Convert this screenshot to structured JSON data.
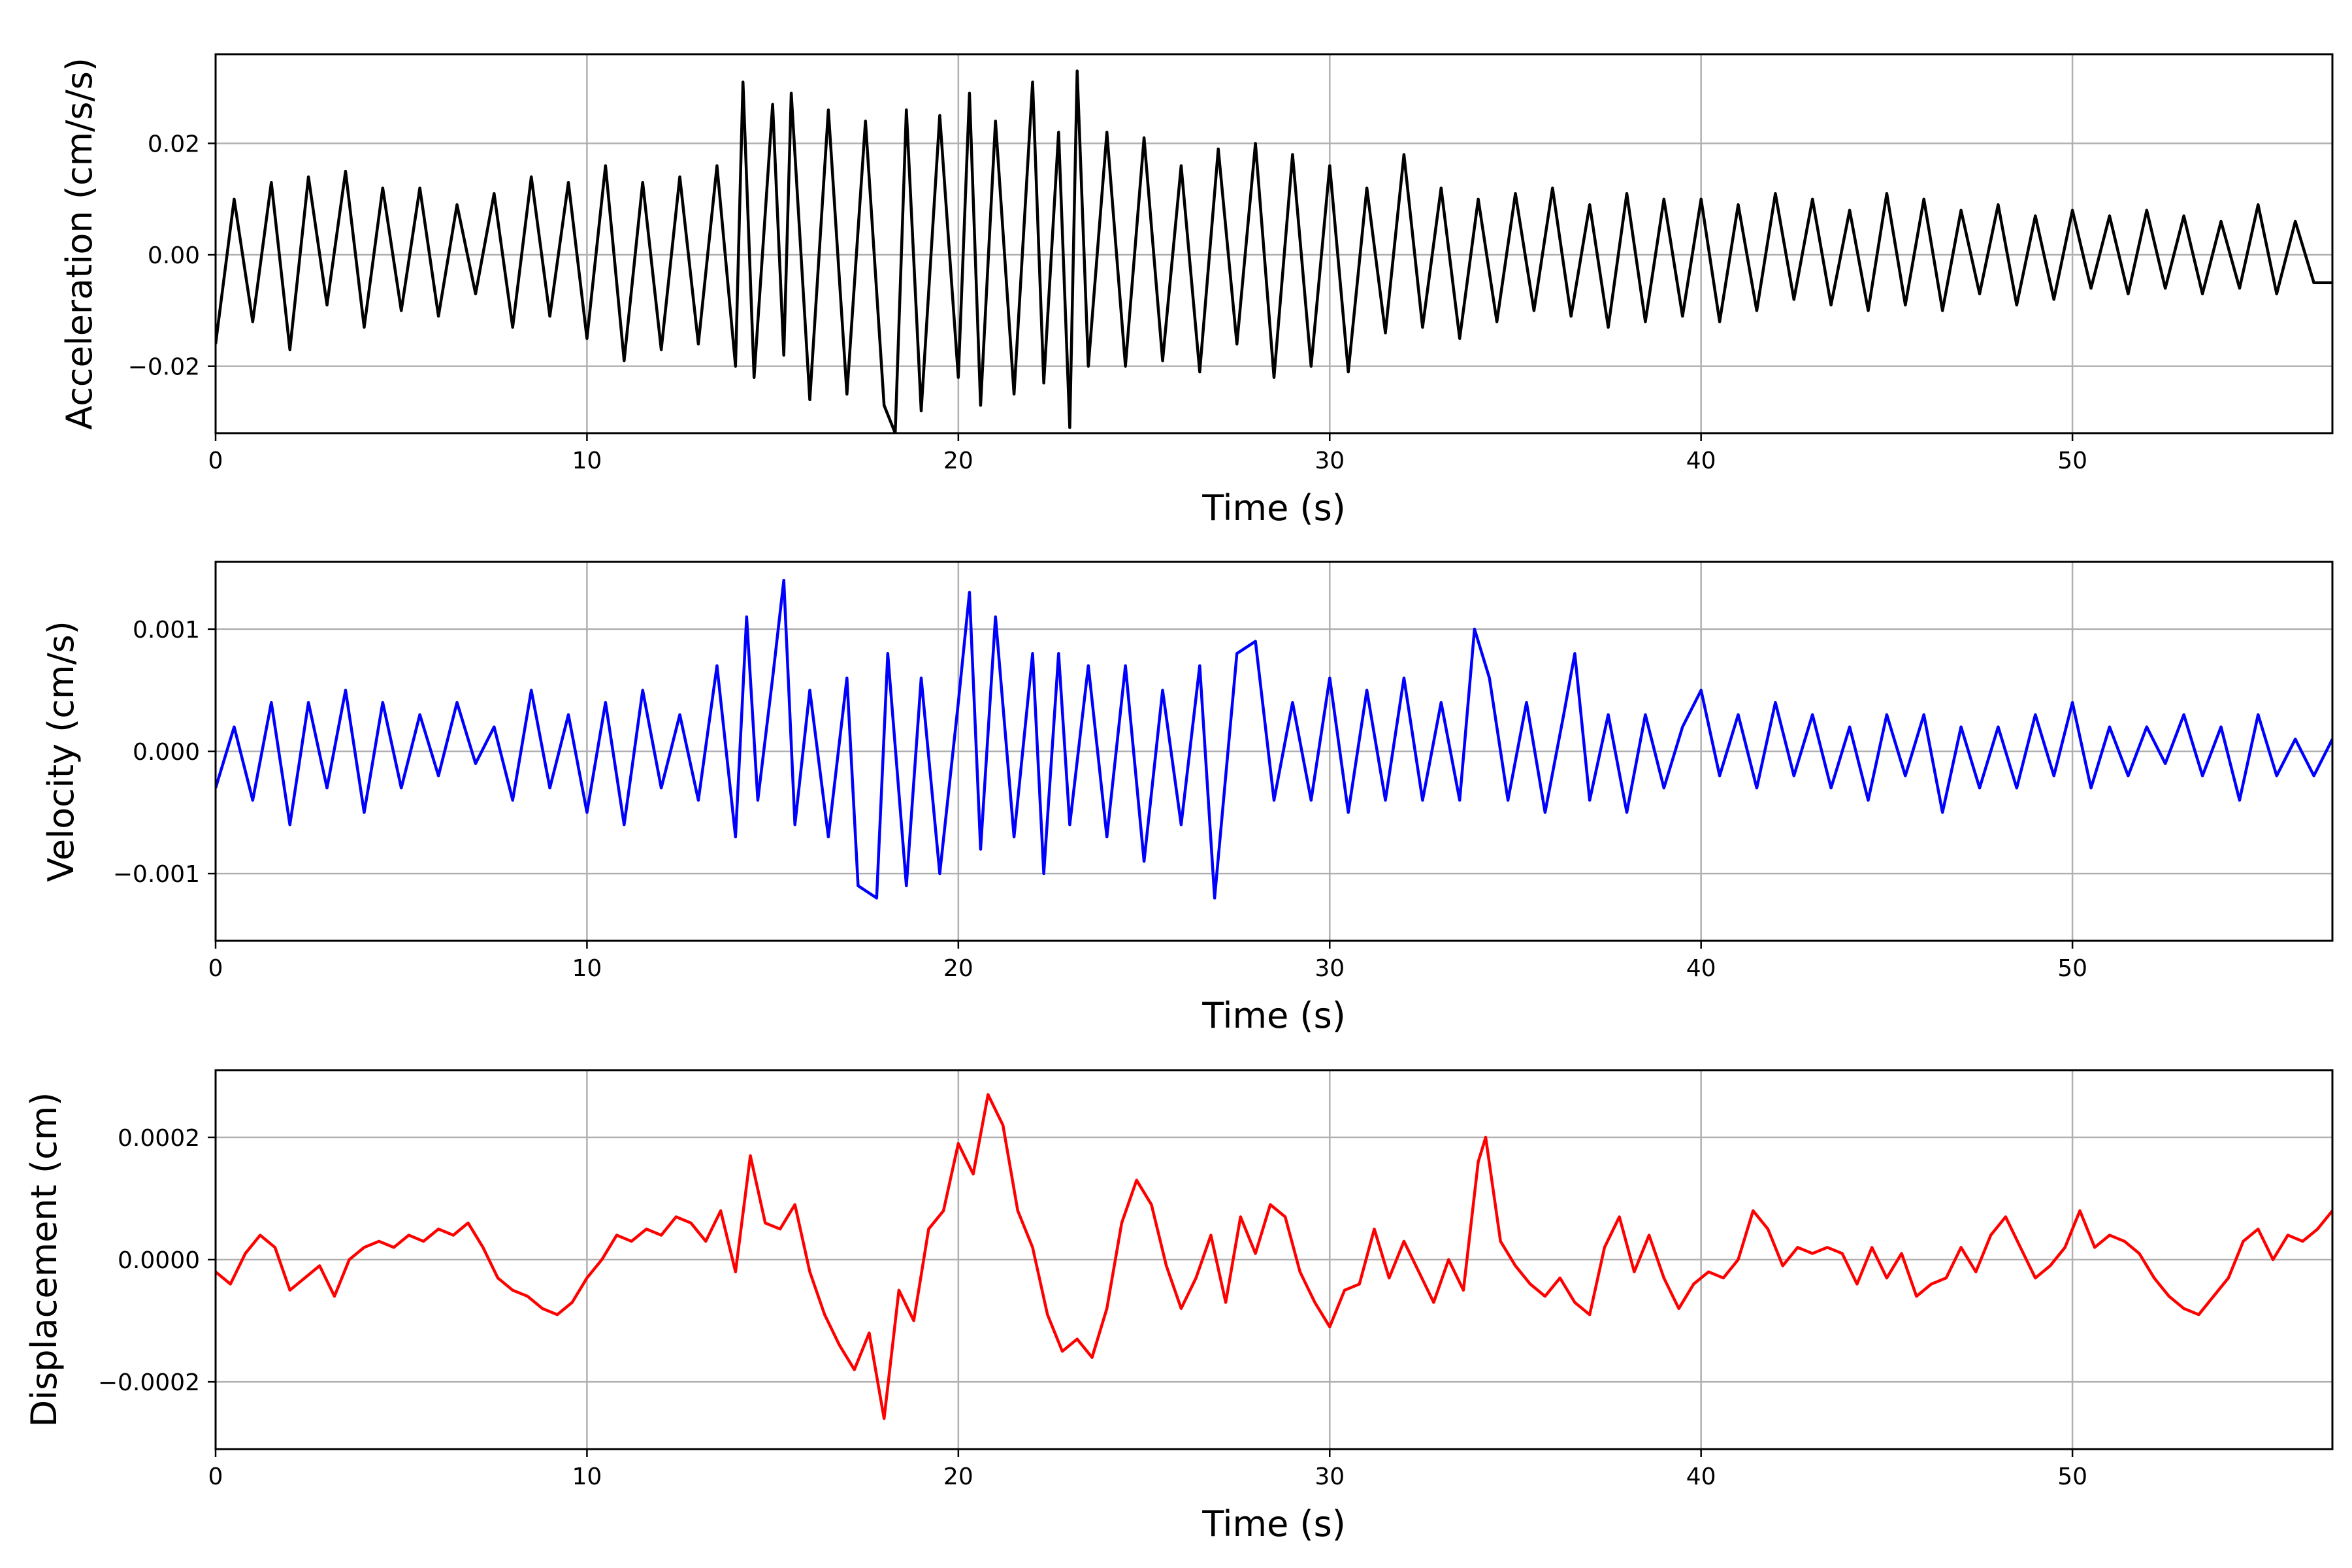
{
  "figure": {
    "background": "#ffffff",
    "grid_color": "#b0b0b0",
    "frame_color": "#000000"
  },
  "chart_data": [
    {
      "type": "line",
      "title": "",
      "xlabel": "Time (s)",
      "ylabel": "Acceleration (cm/s/s)",
      "xlim": [
        0,
        57
      ],
      "ylim": [
        -0.032,
        0.036
      ],
      "xticks": [
        0,
        10,
        20,
        30,
        40,
        50
      ],
      "xtick_labels": [
        "0",
        "10",
        "20",
        "30",
        "40",
        "50"
      ],
      "yticks": [
        -0.02,
        0.0,
        0.02
      ],
      "ytick_labels": [
        "−0.02",
        "0.00",
        "0.02"
      ],
      "grid": true,
      "series": [
        {
          "color": "#000000",
          "x": [
            0,
            0.5,
            1.0,
            1.5,
            2.0,
            2.5,
            3.0,
            3.5,
            4.0,
            4.5,
            5.0,
            5.5,
            6.0,
            6.5,
            7.0,
            7.5,
            8.0,
            8.5,
            9.0,
            9.5,
            10.0,
            10.5,
            11.0,
            11.5,
            12.0,
            12.5,
            13.0,
            13.5,
            14.0,
            14.2,
            14.5,
            15.0,
            15.3,
            15.5,
            16.0,
            16.5,
            17.0,
            17.5,
            18.0,
            18.3,
            18.6,
            19.0,
            19.5,
            20.0,
            20.3,
            20.6,
            21.0,
            21.5,
            22.0,
            22.3,
            22.7,
            23.0,
            23.2,
            23.5,
            24.0,
            24.5,
            25.0,
            25.5,
            26.0,
            26.5,
            27.0,
            27.5,
            28.0,
            28.5,
            29.0,
            29.5,
            30.0,
            30.5,
            31.0,
            31.5,
            32.0,
            32.5,
            33.0,
            33.5,
            34.0,
            34.5,
            35.0,
            35.5,
            36.0,
            36.5,
            37.0,
            37.5,
            38.0,
            38.5,
            39.0,
            39.5,
            40.0,
            40.5,
            41.0,
            41.5,
            42.0,
            42.5,
            43.0,
            43.5,
            44.0,
            44.5,
            45.0,
            45.5,
            46.0,
            46.5,
            47.0,
            47.5,
            48.0,
            48.5,
            49.0,
            49.5,
            50.0,
            50.5,
            51.0,
            51.5,
            52.0,
            52.5,
            53.0,
            53.5,
            54.0,
            54.5,
            55.0,
            55.5,
            56.0,
            56.5,
            57.0
          ],
          "y": [
            -0.016,
            0.01,
            -0.012,
            0.013,
            -0.017,
            0.014,
            -0.009,
            0.015,
            -0.013,
            0.012,
            -0.01,
            0.012,
            -0.011,
            0.009,
            -0.007,
            0.011,
            -0.013,
            0.014,
            -0.011,
            0.013,
            -0.015,
            0.016,
            -0.019,
            0.013,
            -0.017,
            0.014,
            -0.016,
            0.016,
            -0.02,
            0.031,
            -0.022,
            0.027,
            -0.018,
            0.029,
            -0.026,
            0.026,
            -0.025,
            0.024,
            -0.027,
            -0.032,
            0.026,
            -0.028,
            0.025,
            -0.022,
            0.029,
            -0.027,
            0.024,
            -0.025,
            0.031,
            -0.023,
            0.022,
            -0.031,
            0.033,
            -0.02,
            0.022,
            -0.02,
            0.021,
            -0.019,
            0.016,
            -0.021,
            0.019,
            -0.016,
            0.02,
            -0.022,
            0.018,
            -0.02,
            0.016,
            -0.021,
            0.012,
            -0.014,
            0.018,
            -0.013,
            0.012,
            -0.015,
            0.01,
            -0.012,
            0.011,
            -0.01,
            0.012,
            -0.011,
            0.009,
            -0.013,
            0.011,
            -0.012,
            0.01,
            -0.011,
            0.01,
            -0.012,
            0.009,
            -0.01,
            0.011,
            -0.008,
            0.01,
            -0.009,
            0.008,
            -0.01,
            0.011,
            -0.009,
            0.01,
            -0.01,
            0.008,
            -0.007,
            0.009,
            -0.009,
            0.007,
            -0.008,
            0.008,
            -0.006,
            0.007,
            -0.007,
            0.008,
            -0.006,
            0.007,
            -0.007,
            0.006,
            -0.006,
            0.009,
            -0.007,
            0.006,
            -0.005,
            -0.005
          ]
        }
      ]
    },
    {
      "type": "line",
      "title": "",
      "xlabel": "Time (s)",
      "ylabel": "Velocity (cm/s)",
      "xlim": [
        0,
        57
      ],
      "ylim": [
        -0.00155,
        0.00155
      ],
      "xticks": [
        0,
        10,
        20,
        30,
        40,
        50
      ],
      "xtick_labels": [
        "0",
        "10",
        "20",
        "30",
        "40",
        "50"
      ],
      "yticks": [
        -0.001,
        0.0,
        0.001
      ],
      "ytick_labels": [
        "−0.001",
        "0.000",
        "0.001"
      ],
      "grid": true,
      "series": [
        {
          "color": "#0000ff",
          "x": [
            0,
            0.5,
            1.0,
            1.5,
            2.0,
            2.5,
            3.0,
            3.5,
            4.0,
            4.5,
            5.0,
            5.5,
            6.0,
            6.5,
            7.0,
            7.5,
            8.0,
            8.5,
            9.0,
            9.5,
            10.0,
            10.5,
            11.0,
            11.5,
            12.0,
            12.5,
            13.0,
            13.5,
            14.0,
            14.3,
            14.6,
            15.0,
            15.3,
            15.6,
            16.0,
            16.5,
            17.0,
            17.3,
            17.8,
            18.1,
            18.6,
            19.0,
            19.5,
            20.0,
            20.3,
            20.6,
            21.0,
            21.5,
            22.0,
            22.3,
            22.7,
            23.0,
            23.5,
            24.0,
            24.5,
            25.0,
            25.5,
            26.0,
            26.5,
            26.9,
            27.5,
            28.0,
            28.5,
            29.0,
            29.5,
            30.0,
            30.5,
            31.0,
            31.5,
            32.0,
            32.5,
            33.0,
            33.5,
            33.9,
            34.3,
            34.8,
            35.3,
            35.8,
            36.3,
            36.6,
            37.0,
            37.5,
            38.0,
            38.5,
            39.0,
            39.5,
            40.0,
            40.5,
            41.0,
            41.5,
            42.0,
            42.5,
            43.0,
            43.5,
            44.0,
            44.5,
            45.0,
            45.5,
            46.0,
            46.5,
            47.0,
            47.5,
            48.0,
            48.5,
            49.0,
            49.5,
            50.0,
            50.5,
            51.0,
            51.5,
            52.0,
            52.5,
            53.0,
            53.5,
            54.0,
            54.5,
            55.0,
            55.5,
            56.0,
            56.5,
            57.0
          ],
          "y": [
            -0.0003,
            0.0002,
            -0.0004,
            0.0004,
            -0.0006,
            0.0004,
            -0.0003,
            0.0005,
            -0.0005,
            0.0004,
            -0.0003,
            0.0003,
            -0.0002,
            0.0004,
            -0.0001,
            0.0002,
            -0.0004,
            0.0005,
            -0.0003,
            0.0003,
            -0.0005,
            0.0004,
            -0.0006,
            0.0005,
            -0.0003,
            0.0003,
            -0.0004,
            0.0007,
            -0.0007,
            0.0011,
            -0.0004,
            0.0006,
            0.0014,
            -0.0006,
            0.0005,
            -0.0007,
            0.0006,
            -0.0011,
            -0.0012,
            0.0008,
            -0.0011,
            0.0006,
            -0.001,
            0.0004,
            0.0013,
            -0.0008,
            0.0011,
            -0.0007,
            0.0008,
            -0.001,
            0.0008,
            -0.0006,
            0.0007,
            -0.0007,
            0.0007,
            -0.0009,
            0.0005,
            -0.0006,
            0.0007,
            -0.0012,
            0.0008,
            0.0009,
            -0.0004,
            0.0004,
            -0.0004,
            0.0006,
            -0.0005,
            0.0005,
            -0.0004,
            0.0006,
            -0.0004,
            0.0004,
            -0.0004,
            0.001,
            0.0006,
            -0.0004,
            0.0004,
            -0.0005,
            0.0003,
            0.0008,
            -0.0004,
            0.0003,
            -0.0005,
            0.0003,
            -0.0003,
            0.0002,
            0.0005,
            -0.0002,
            0.0003,
            -0.0003,
            0.0004,
            -0.0002,
            0.0003,
            -0.0003,
            0.0002,
            -0.0004,
            0.0003,
            -0.0002,
            0.0003,
            -0.0005,
            0.0002,
            -0.0003,
            0.0002,
            -0.0003,
            0.0003,
            -0.0002,
            0.0004,
            -0.0003,
            0.0002,
            -0.0002,
            0.0002,
            -0.0001,
            0.0003,
            -0.0002,
            0.0002,
            -0.0004,
            0.0003,
            -0.0002,
            0.0001,
            -0.0002,
            0.0001
          ]
        }
      ]
    },
    {
      "type": "line",
      "title": "",
      "xlabel": "Time (s)",
      "ylabel": "Displacement (cm)",
      "xlim": [
        0,
        57
      ],
      "ylim": [
        -0.00031,
        0.00031
      ],
      "xticks": [
        0,
        10,
        20,
        30,
        40,
        50
      ],
      "xtick_labels": [
        "0",
        "10",
        "20",
        "30",
        "40",
        "50"
      ],
      "yticks": [
        -0.0002,
        0.0,
        0.0002
      ],
      "ytick_labels": [
        "−0.0002",
        "0.0000",
        "0.0002"
      ],
      "grid": true,
      "series": [
        {
          "color": "#ff0000",
          "x": [
            0,
            0.4,
            0.8,
            1.2,
            1.6,
            2.0,
            2.4,
            2.8,
            3.2,
            3.6,
            4.0,
            4.4,
            4.8,
            5.2,
            5.6,
            6.0,
            6.4,
            6.8,
            7.2,
            7.6,
            8.0,
            8.4,
            8.8,
            9.2,
            9.6,
            10.0,
            10.4,
            10.8,
            11.2,
            11.6,
            12.0,
            12.4,
            12.8,
            13.2,
            13.6,
            14.0,
            14.4,
            14.8,
            15.2,
            15.6,
            16.0,
            16.4,
            16.8,
            17.2,
            17.6,
            18.0,
            18.4,
            18.8,
            19.2,
            19.6,
            20.0,
            20.4,
            20.8,
            21.2,
            21.6,
            22.0,
            22.4,
            22.8,
            23.2,
            23.6,
            24.0,
            24.4,
            24.8,
            25.2,
            25.6,
            26.0,
            26.4,
            26.8,
            27.2,
            27.6,
            28.0,
            28.4,
            28.8,
            29.2,
            29.6,
            30.0,
            30.4,
            30.8,
            31.2,
            31.6,
            32.0,
            32.4,
            32.8,
            33.2,
            33.6,
            34.0,
            34.2,
            34.6,
            35.0,
            35.4,
            35.8,
            36.2,
            36.6,
            37.0,
            37.4,
            37.8,
            38.2,
            38.6,
            39.0,
            39.4,
            39.8,
            40.2,
            40.6,
            41.0,
            41.4,
            41.8,
            42.2,
            42.6,
            43.0,
            43.4,
            43.8,
            44.2,
            44.6,
            45.0,
            45.4,
            45.8,
            46.2,
            46.6,
            47.0,
            47.4,
            47.8,
            48.2,
            48.6,
            49.0,
            49.4,
            49.8,
            50.2,
            50.6,
            51.0,
            51.4,
            51.8,
            52.2,
            52.6,
            53.0,
            53.4,
            53.8,
            54.2,
            54.6,
            55.0,
            55.4,
            55.8,
            56.2,
            56.6,
            57.0
          ],
          "y": [
            -2e-05,
            -4e-05,
            1e-05,
            4e-05,
            2e-05,
            -5e-05,
            -3e-05,
            -1e-05,
            -6e-05,
            0.0,
            2e-05,
            3e-05,
            2e-05,
            4e-05,
            3e-05,
            5e-05,
            4e-05,
            6e-05,
            2e-05,
            -3e-05,
            -5e-05,
            -6e-05,
            -8e-05,
            -9e-05,
            -7e-05,
            -3e-05,
            0.0,
            4e-05,
            3e-05,
            5e-05,
            4e-05,
            7e-05,
            6e-05,
            3e-05,
            8e-05,
            -2e-05,
            0.00017,
            6e-05,
            5e-05,
            9e-05,
            -2e-05,
            -9e-05,
            -0.00014,
            -0.00018,
            -0.00012,
            -0.00026,
            -5e-05,
            -0.0001,
            5e-05,
            8e-05,
            0.00019,
            0.00014,
            0.00027,
            0.00022,
            8e-05,
            2e-05,
            -9e-05,
            -0.00015,
            -0.00013,
            -0.00016,
            -8e-05,
            6e-05,
            0.00013,
            9e-05,
            -1e-05,
            -8e-05,
            -3e-05,
            4e-05,
            -7e-05,
            7e-05,
            1e-05,
            9e-05,
            7e-05,
            -2e-05,
            -7e-05,
            -0.00011,
            -5e-05,
            -4e-05,
            5e-05,
            -3e-05,
            3e-05,
            -2e-05,
            -7e-05,
            0.0,
            -5e-05,
            0.00016,
            0.0002,
            3e-05,
            -1e-05,
            -4e-05,
            -6e-05,
            -3e-05,
            -7e-05,
            -9e-05,
            2e-05,
            7e-05,
            -2e-05,
            4e-05,
            -3e-05,
            -8e-05,
            -4e-05,
            -2e-05,
            -3e-05,
            0.0,
            8e-05,
            5e-05,
            -1e-05,
            2e-05,
            1e-05,
            2e-05,
            1e-05,
            -4e-05,
            2e-05,
            -3e-05,
            1e-05,
            -6e-05,
            -4e-05,
            -3e-05,
            2e-05,
            -2e-05,
            4e-05,
            7e-05,
            2e-05,
            -3e-05,
            -1e-05,
            2e-05,
            8e-05,
            2e-05,
            4e-05,
            3e-05,
            1e-05,
            -3e-05,
            -6e-05,
            -8e-05,
            -9e-05,
            -6e-05,
            -3e-05,
            3e-05,
            5e-05,
            0.0,
            4e-05,
            3e-05,
            5e-05,
            8e-05
          ]
        }
      ]
    }
  ]
}
